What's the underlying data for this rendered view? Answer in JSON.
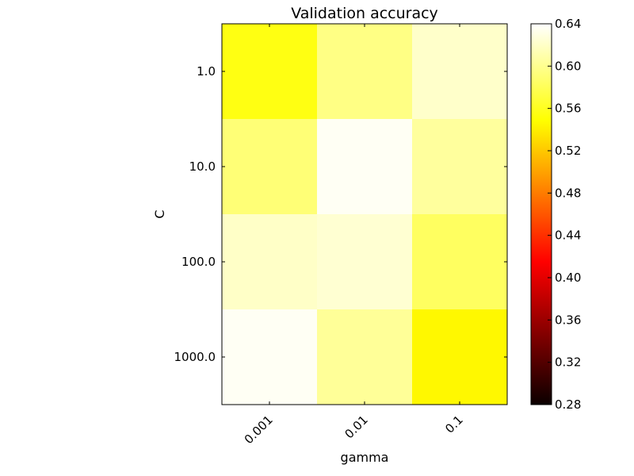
{
  "chart_data": {
    "type": "heatmap",
    "title": "Validation accuracy",
    "xlabel": "gamma",
    "ylabel": "C",
    "x_categories": [
      "0.001",
      "0.01",
      "0.1"
    ],
    "y_categories": [
      "1.0",
      "10.0",
      "100.0",
      "1000.0"
    ],
    "values": [
      [
        0.555,
        0.596,
        0.621
      ],
      [
        0.591,
        0.636,
        0.605
      ],
      [
        0.62,
        0.624,
        0.583
      ],
      [
        0.636,
        0.603,
        0.545
      ]
    ],
    "colormap": "hot",
    "colorbar": {
      "range": [
        0.28,
        0.64
      ],
      "ticks": [
        "0.28",
        "0.32",
        "0.36",
        "0.40",
        "0.44",
        "0.48",
        "0.52",
        "0.56",
        "0.60",
        "0.64"
      ]
    },
    "grid": false
  }
}
